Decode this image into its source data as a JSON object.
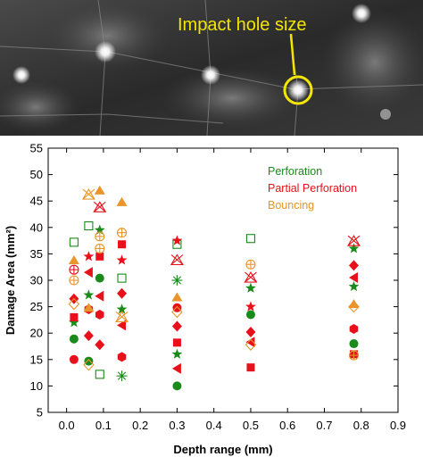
{
  "photo": {
    "annotation": "Impact hole size",
    "annotation_color": "#f2e600"
  },
  "chart_data": {
    "type": "scatter",
    "title": "",
    "xlabel": "Depth range (mm)",
    "ylabel": "Damage Area (mm²)",
    "xlim": [
      -0.05,
      0.9
    ],
    "ylim": [
      5,
      55
    ],
    "xticks": [
      "0.0",
      "0.1",
      "0.2",
      "0.3",
      "0.4",
      "0.5",
      "0.6",
      "0.7",
      "0.8",
      "0.9"
    ],
    "yticks": [
      "5",
      "10",
      "15",
      "20",
      "25",
      "30",
      "35",
      "40",
      "45",
      "50",
      "55"
    ],
    "grid": false,
    "legend_position": "top-right",
    "series": [
      {
        "name": "Perforation",
        "color": "#1a8a1a",
        "points": [
          {
            "x": 0.02,
            "y": 37.2,
            "marker": "square-open"
          },
          {
            "x": 0.02,
            "y": 18.9,
            "marker": "circle"
          },
          {
            "x": 0.02,
            "y": 22.0,
            "marker": "star"
          },
          {
            "x": 0.06,
            "y": 40.3,
            "marker": "square-open"
          },
          {
            "x": 0.06,
            "y": 14.7,
            "marker": "circle"
          },
          {
            "x": 0.06,
            "y": 27.2,
            "marker": "star"
          },
          {
            "x": 0.09,
            "y": 39.5,
            "marker": "star"
          },
          {
            "x": 0.09,
            "y": 30.4,
            "marker": "circle"
          },
          {
            "x": 0.09,
            "y": 12.2,
            "marker": "square-open"
          },
          {
            "x": 0.15,
            "y": 30.4,
            "marker": "square-open"
          },
          {
            "x": 0.15,
            "y": 24.5,
            "marker": "star"
          },
          {
            "x": 0.15,
            "y": 11.9,
            "marker": "asterisk"
          },
          {
            "x": 0.3,
            "y": 36.8,
            "marker": "square-open"
          },
          {
            "x": 0.3,
            "y": 30.0,
            "marker": "asterisk"
          },
          {
            "x": 0.3,
            "y": 16.0,
            "marker": "star"
          },
          {
            "x": 0.3,
            "y": 10.0,
            "marker": "circle"
          },
          {
            "x": 0.5,
            "y": 37.9,
            "marker": "square-open"
          },
          {
            "x": 0.5,
            "y": 28.5,
            "marker": "star"
          },
          {
            "x": 0.5,
            "y": 23.5,
            "marker": "circle"
          },
          {
            "x": 0.78,
            "y": 36.0,
            "marker": "star"
          },
          {
            "x": 0.78,
            "y": 28.8,
            "marker": "star"
          },
          {
            "x": 0.78,
            "y": 18.0,
            "marker": "circle"
          }
        ]
      },
      {
        "name": "Partial Perforation",
        "color": "#e8101a",
        "points": [
          {
            "x": 0.02,
            "y": 15.0,
            "marker": "circle"
          },
          {
            "x": 0.02,
            "y": 23.0,
            "marker": "square"
          },
          {
            "x": 0.02,
            "y": 26.5,
            "marker": "diamond"
          },
          {
            "x": 0.02,
            "y": 32.0,
            "marker": "circle-cross-open"
          },
          {
            "x": 0.06,
            "y": 19.5,
            "marker": "diamond"
          },
          {
            "x": 0.06,
            "y": 31.5,
            "marker": "triangle-left"
          },
          {
            "x": 0.06,
            "y": 34.5,
            "marker": "star"
          },
          {
            "x": 0.06,
            "y": 24.5,
            "marker": "hexagon"
          },
          {
            "x": 0.09,
            "y": 17.8,
            "marker": "diamond"
          },
          {
            "x": 0.09,
            "y": 23.5,
            "marker": "hexagon"
          },
          {
            "x": 0.09,
            "y": 27.0,
            "marker": "triangle-left"
          },
          {
            "x": 0.09,
            "y": 34.5,
            "marker": "square"
          },
          {
            "x": 0.09,
            "y": 43.8,
            "marker": "x-triangle-open"
          },
          {
            "x": 0.15,
            "y": 15.5,
            "marker": "hexagon"
          },
          {
            "x": 0.15,
            "y": 21.5,
            "marker": "triangle-left"
          },
          {
            "x": 0.15,
            "y": 27.5,
            "marker": "diamond"
          },
          {
            "x": 0.15,
            "y": 33.8,
            "marker": "star"
          },
          {
            "x": 0.15,
            "y": 36.8,
            "marker": "square"
          },
          {
            "x": 0.3,
            "y": 13.3,
            "marker": "triangle-left"
          },
          {
            "x": 0.3,
            "y": 18.2,
            "marker": "square"
          },
          {
            "x": 0.3,
            "y": 21.3,
            "marker": "diamond"
          },
          {
            "x": 0.3,
            "y": 24.8,
            "marker": "circle"
          },
          {
            "x": 0.3,
            "y": 33.8,
            "marker": "x-triangle-open"
          },
          {
            "x": 0.3,
            "y": 37.5,
            "marker": "star"
          },
          {
            "x": 0.5,
            "y": 13.5,
            "marker": "square"
          },
          {
            "x": 0.5,
            "y": 18.3,
            "marker": "triangle-left"
          },
          {
            "x": 0.5,
            "y": 20.2,
            "marker": "diamond"
          },
          {
            "x": 0.5,
            "y": 25.0,
            "marker": "star"
          },
          {
            "x": 0.5,
            "y": 30.5,
            "marker": "x-triangle-open"
          },
          {
            "x": 0.78,
            "y": 16.0,
            "marker": "square"
          },
          {
            "x": 0.78,
            "y": 20.8,
            "marker": "hexagon"
          },
          {
            "x": 0.78,
            "y": 30.5,
            "marker": "triangle-left"
          },
          {
            "x": 0.78,
            "y": 32.8,
            "marker": "diamond"
          },
          {
            "x": 0.78,
            "y": 37.4,
            "marker": "x-triangle-open"
          }
        ]
      },
      {
        "name": "Bouncing",
        "color": "#e8952a",
        "points": [
          {
            "x": 0.02,
            "y": 33.8,
            "marker": "triangle-up"
          },
          {
            "x": 0.02,
            "y": 30.0,
            "marker": "circle-cross-open"
          },
          {
            "x": 0.02,
            "y": 25.5,
            "marker": "diamond-open"
          },
          {
            "x": 0.06,
            "y": 46.2,
            "marker": "x-triangle-open"
          },
          {
            "x": 0.06,
            "y": 24.8,
            "marker": "triangle-up"
          },
          {
            "x": 0.06,
            "y": 14.0,
            "marker": "diamond-open"
          },
          {
            "x": 0.09,
            "y": 47.0,
            "marker": "triangle-up"
          },
          {
            "x": 0.09,
            "y": 38.3,
            "marker": "circle-cross-open"
          },
          {
            "x": 0.09,
            "y": 36.0,
            "marker": "circle-cross-open"
          },
          {
            "x": 0.15,
            "y": 44.8,
            "marker": "triangle-up"
          },
          {
            "x": 0.15,
            "y": 39.0,
            "marker": "circle-cross-open"
          },
          {
            "x": 0.15,
            "y": 23.0,
            "marker": "x-triangle-open"
          },
          {
            "x": 0.3,
            "y": 26.8,
            "marker": "triangle-up"
          },
          {
            "x": 0.3,
            "y": 24.0,
            "marker": "diamond-open"
          },
          {
            "x": 0.5,
            "y": 33.0,
            "marker": "circle-cross-open"
          },
          {
            "x": 0.5,
            "y": 17.8,
            "marker": "diamond-open"
          },
          {
            "x": 0.78,
            "y": 25.5,
            "marker": "triangle-up"
          },
          {
            "x": 0.78,
            "y": 25.0,
            "marker": "diamond-open"
          },
          {
            "x": 0.78,
            "y": 15.8,
            "marker": "circle-cross-open"
          }
        ]
      }
    ]
  }
}
